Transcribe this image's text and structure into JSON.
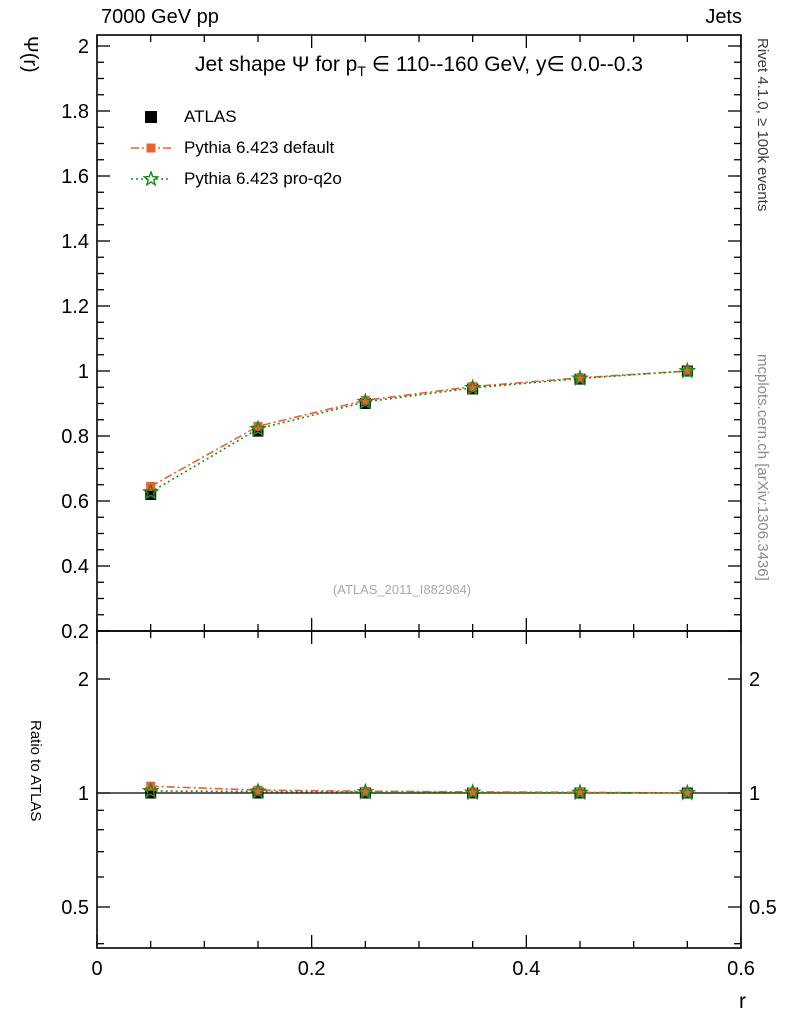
{
  "header": {
    "left": "7000 GeV pp",
    "right": "Jets"
  },
  "title": {
    "pre": "Jet shape Ψ for p",
    "sub": "T",
    "post": " ∈ 110--160 GeV, y∈ 0.0--0.3"
  },
  "legend": {
    "entries": [
      {
        "label": "ATLAS"
      },
      {
        "label": "Pythia 6.423 default"
      },
      {
        "label": "Pythia 6.423 pro-q2o"
      }
    ]
  },
  "watermark": "(ATLAS_2011_I882984)",
  "captions": {
    "right_top": "Rivet 4.1.0, ≥ 100k events",
    "right_bottom": "mcplots.cern.ch [arXiv:1306.3436]"
  },
  "axes": {
    "y_top_label": "Ψ(r)",
    "y_ratio_label": "Ratio to ATLAS",
    "x_label": "r"
  },
  "colors": {
    "atlas": "#000000",
    "pythia_default": "#e8642c",
    "pythia_proq2o": "#228b22",
    "frame": "#000000",
    "watermark_gray": "#a8a8a8",
    "caption_gray": "#8a8a8a"
  },
  "chart_data": {
    "type": "line",
    "title": "Jet shape Ψ for p_T ∈ 110--160 GeV, y∈ 0.0--0.3",
    "xlabel": "r",
    "ylabel": "Ψ(r)",
    "ratio_label": "Ratio to ATLAS",
    "x": [
      0.05,
      0.15,
      0.25,
      0.35,
      0.45,
      0.55
    ],
    "x_axis": {
      "range": [
        0,
        0.6
      ],
      "ticks": [
        0,
        0.2,
        0.4,
        0.6
      ],
      "minor_step": 0.05
    },
    "y_axis": {
      "range": [
        0.2,
        2.03
      ],
      "ticks": [
        0.2,
        0.4,
        0.6,
        0.8,
        1.0,
        1.2,
        1.4,
        1.6,
        1.8,
        2.0
      ],
      "minor_step": 0.05
    },
    "ratio_axis": {
      "scale": "log",
      "range": [
        0.39,
        2.68
      ],
      "ticks": [
        0.5,
        1,
        2
      ],
      "minor_ticks": [
        0.4,
        0.6,
        0.7,
        0.8,
        0.9
      ]
    },
    "series": [
      {
        "name": "ATLAS",
        "color": "#000000",
        "marker": "square",
        "marker_size": 11,
        "line": "none",
        "values": [
          0.62,
          0.815,
          0.9,
          0.945,
          0.975,
          1.0
        ],
        "errors": [
          0.012,
          0.009,
          0.006,
          0.005,
          0.004,
          0.003
        ],
        "ratio": [
          1.0,
          1.0,
          1.0,
          1.0,
          1.0,
          1.0
        ]
      },
      {
        "name": "Pythia 6.423 default",
        "color": "#e8642c",
        "marker": "square",
        "marker_size": 9,
        "line": "dashdot",
        "values": [
          0.645,
          0.83,
          0.91,
          0.952,
          0.979,
          1.0
        ],
        "ratio": [
          1.042,
          1.018,
          1.011,
          1.007,
          1.004,
          1.0
        ]
      },
      {
        "name": "Pythia 6.423 pro-q2o",
        "color": "#228b22",
        "marker": "star",
        "marker_size": 15,
        "line": "dotted",
        "values": [
          0.627,
          0.822,
          0.905,
          0.948,
          0.977,
          1.0
        ],
        "ratio": [
          1.012,
          1.009,
          1.006,
          1.003,
          1.002,
          1.0
        ]
      }
    ]
  }
}
